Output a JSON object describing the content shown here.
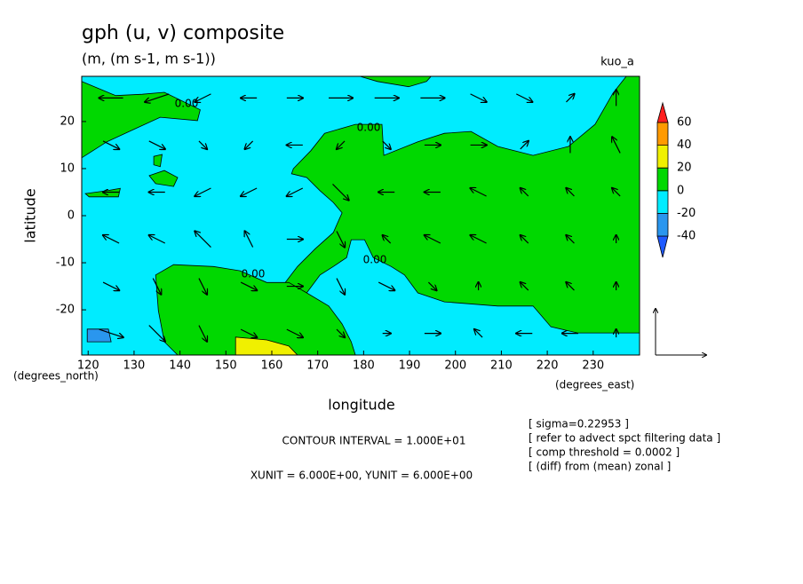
{
  "chart_data": {
    "type": "contour-vector",
    "title": "gph (u, v) composite",
    "subtitle": "(m, (m s-1, m s-1))",
    "dataset": "kuo_a",
    "x_label": "longitude",
    "y_label": "latitude",
    "y_units": "(degrees_north)",
    "x_units": "(degrees_east)",
    "xlim": [
      118.6,
      240.1
    ],
    "ylim": [
      -29.6,
      29.6
    ],
    "xticks": [
      120,
      130,
      140,
      150,
      160,
      170,
      180,
      190,
      200,
      210,
      220,
      230
    ],
    "yticks": [
      -20,
      -10,
      0,
      10,
      20
    ],
    "colorbar": {
      "levels": [
        -40,
        -20,
        0,
        20,
        40,
        60
      ],
      "colors": [
        "#1e5aff",
        "#2a96ee",
        "#00ecff",
        "#00d800",
        "#f0f000",
        "#ff9a00",
        "#ff1e1e"
      ]
    },
    "regions": [
      {
        "level": 0,
        "lon": [
          118.6,
          126,
          131.8,
          136.6,
          144.4,
          143.8,
          135.7,
          129.9,
          124.1,
          118.6
        ],
        "lat": [
          28.5,
          25.5,
          25.8,
          26.2,
          22.5,
          20.2,
          20.9,
          18.3,
          15.7,
          12.3
        ]
      },
      {
        "level": 0,
        "lon": [
          179.2,
          183,
          189.8,
          193.7,
          194.7
        ],
        "lat": [
          29.6,
          28.5,
          27.4,
          28.5,
          29.6
        ]
      },
      {
        "level": 0,
        "lon": [
          164.7,
          168.5,
          171.5,
          178.2,
          184,
          184.4,
          191.8,
          197.6,
          203.4,
          209.2,
          216.9,
          224.6,
          230.4,
          234.3,
          237.2,
          240.1,
          240.1,
          226.6,
          220.8,
          216.9,
          209.2,
          197.6,
          191.8,
          188.9,
          186,
          182.1,
          180.2,
          177.3,
          176.3,
          173.4,
          170.5,
          167.6,
          164.7,
          162.7,
          165.6,
          169.5,
          173.4,
          175.3,
          173.4,
          170.5,
          167.6,
          164.3
        ],
        "lat": [
          10,
          13.8,
          17.5,
          19.4,
          19.4,
          12.8,
          15.7,
          17.5,
          17.9,
          14.7,
          12.8,
          14.7,
          19.4,
          26,
          29.6,
          29.6,
          -24.9,
          -24.9,
          -23.6,
          -19.2,
          -19.2,
          -18.3,
          -16.4,
          -12.6,
          -10.8,
          -8.9,
          -5.1,
          -5.1,
          -8.9,
          -10.8,
          -12.6,
          -16.4,
          -18.3,
          -14.5,
          -10.8,
          -7,
          -3.6,
          0.6,
          2.8,
          5.3,
          8.1,
          8.9
        ]
      },
      {
        "level": 0,
        "lon": [
          134.7,
          138.6,
          147.3,
          153.1,
          158.9,
          163.7,
          167.6,
          172.4,
          175.3,
          177.3,
          178.2,
          139.5,
          136.6,
          135.3
        ],
        "lat": [
          -12.6,
          -10.4,
          -10.8,
          -11.7,
          -14.2,
          -14.2,
          -16.4,
          -19.2,
          -23,
          -26.8,
          -29.6,
          -29.6,
          -26.8,
          -20.2
        ]
      },
      {
        "level": 0,
        "lon": [
          133.3,
          136.6,
          139.5,
          138.6,
          134.7
        ],
        "lat": [
          8.5,
          9.6,
          8.1,
          6.2,
          6.8
        ]
      },
      {
        "level": 0,
        "lon": [
          119.4,
          124.1,
          127,
          126.6,
          120.2
        ],
        "lat": [
          4.7,
          5.3,
          5.8,
          4,
          4
        ]
      },
      {
        "level": 0,
        "lon": [
          134.3,
          136.1,
          135.7,
          134.3
        ],
        "lat": [
          12.6,
          13,
          10.4,
          10.8
        ]
      },
      {
        "level": 20,
        "lon": [
          152.1,
          158.9,
          163.7,
          165.6,
          152.1
        ],
        "lat": [
          -25.8,
          -26.4,
          -27.7,
          -29.6,
          -29.6
        ]
      },
      {
        "level": -40,
        "lon": [
          119.8,
          124.4,
          125,
          119.8
        ],
        "lat": [
          -24.1,
          -24.1,
          -26.8,
          -26.8
        ]
      }
    ],
    "contour_labels": [
      {
        "value": 0,
        "label": "0.00"
      },
      {
        "value": 0,
        "label": "0.00"
      },
      {
        "value": 0,
        "label": "0.00"
      },
      {
        "value": 0,
        "label": "0.00"
      }
    ],
    "vectors": {
      "lon": [
        125,
        135,
        145,
        155,
        165,
        175,
        185,
        195,
        205,
        215,
        225,
        235
      ],
      "lat": [
        25,
        15,
        5,
        -5,
        -15,
        -25
      ],
      "u": [
        [
          -3,
          -3,
          -2,
          -2,
          2,
          3,
          3,
          3,
          2,
          2,
          1,
          0
        ],
        [
          2,
          2,
          1,
          -1,
          -2,
          -1,
          1,
          2,
          2,
          1,
          0,
          -1
        ],
        [
          -2,
          -2,
          -2,
          -2,
          -2,
          2,
          -2,
          -2,
          -2,
          -1,
          -1,
          -1
        ],
        [
          -2,
          -2,
          -2,
          -1,
          2,
          1,
          -1,
          -2,
          -2,
          -1,
          -1,
          0
        ],
        [
          2,
          1,
          1,
          2,
          2,
          1,
          2,
          1,
          0,
          -1,
          -1,
          0
        ],
        [
          3,
          2,
          1,
          2,
          2,
          1,
          1,
          2,
          -1,
          -2,
          -2,
          0
        ]
      ],
      "v": [
        [
          0,
          -1,
          -1,
          0,
          0,
          0,
          0,
          0,
          -1,
          -1,
          1,
          2
        ],
        [
          -1,
          -1,
          -1,
          -1,
          0,
          -1,
          -1,
          0,
          0,
          1,
          2,
          2
        ],
        [
          0,
          0,
          -1,
          -1,
          -1,
          -2,
          0,
          0,
          1,
          1,
          1,
          1
        ],
        [
          1,
          1,
          2,
          2,
          0,
          -2,
          1,
          1,
          1,
          1,
          1,
          1
        ],
        [
          -1,
          -2,
          -2,
          -1,
          0,
          -2,
          -1,
          -1,
          1,
          1,
          1,
          1
        ],
        [
          -1,
          -2,
          -2,
          -1,
          -1,
          -1,
          0,
          0,
          1,
          0,
          0,
          1
        ]
      ]
    },
    "contour_interval": "CONTOUR INTERVAL = 1.000E+01",
    "vector_units": "XUNIT = 6.000E+00, YUNIT = 6.000E+00",
    "notes": [
      "[ sigma=0.22953 ]",
      "[ refer to advect spct filtering data ]",
      "[ comp threshold = 0.0002 ]",
      "[ (diff) from (mean) zonal ]"
    ]
  }
}
